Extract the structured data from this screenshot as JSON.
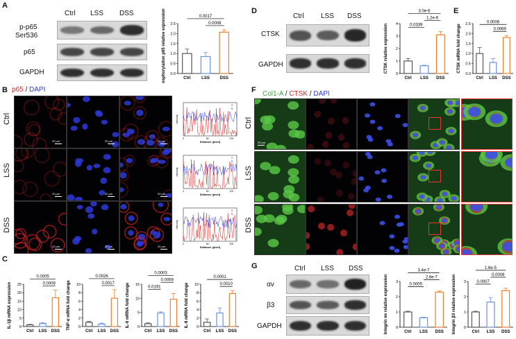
{
  "panels": {
    "A": "A",
    "B": "B",
    "C": "C",
    "D": "D",
    "E": "E",
    "F": "F",
    "G": "G"
  },
  "groups": [
    "Ctrl",
    "LSS",
    "DSS"
  ],
  "colors": {
    "ctrl": "#555555",
    "lss": "#6a8fe0",
    "dss": "#ee7f2d",
    "red": "#d42323",
    "blue": "#2d39d8",
    "green": "#3ea23e"
  },
  "panelA": {
    "row_labels": {
      "pp65_line1": "p-p65",
      "pp65_line2": "Ser536",
      "p65": "p65",
      "gapdh": "GAPDH"
    },
    "band_intensity": {
      "pp65": [
        0.35,
        0.45,
        0.85
      ],
      "p65": [
        0.7,
        0.7,
        0.7
      ],
      "gapdh": [
        0.85,
        0.85,
        0.85
      ]
    }
  },
  "panelB": {
    "legend_p65": "p65",
    "legend_sep": " / ",
    "legend_dapi": "DAPI",
    "row_labels": [
      "Ctrl",
      "LSS",
      "DSS"
    ],
    "scale": "20 μm",
    "plot_xlabel": "Distance (pixel)",
    "plot_ylabel": "Intensity",
    "plot_legend": [
      "R",
      "B"
    ],
    "plot_xticks": [
      "0",
      "50",
      "100"
    ]
  },
  "panelD": {
    "row_labels": {
      "ctsk": "CTSK",
      "gapdh": "GAPDH"
    },
    "band_intensity": {
      "ctsk": [
        0.6,
        0.55,
        0.9
      ],
      "gapdh": [
        0.85,
        0.85,
        0.85
      ]
    }
  },
  "panelF": {
    "legend_col1a": "Col1-A",
    "legend_sep1": " / ",
    "legend_ctsk": "CTSK",
    "legend_sep2": " / ",
    "legend_dapi": "DAPI",
    "row_labels": [
      "Ctrl",
      "LSS",
      "DSS"
    ],
    "scale": "20 μm"
  },
  "panelG": {
    "row_labels": {
      "av": "αv",
      "b3": "β3",
      "gapdh": "GAPDH"
    },
    "band_intensity": {
      "av": [
        0.45,
        0.4,
        0.95
      ],
      "b3": [
        0.6,
        0.55,
        0.85
      ],
      "gapdh": [
        0.85,
        0.85,
        0.85
      ]
    }
  },
  "chart_data": [
    {
      "id": "A",
      "type": "bar",
      "categories": [
        "Ctrl",
        "LSS",
        "DSS"
      ],
      "values": [
        1.0,
        0.85,
        2.07
      ],
      "errors": [
        0.22,
        0.2,
        0.12
      ],
      "ylabel": "Phosphorylation p65 relative expression",
      "ylim": [
        0,
        2.5
      ],
      "yticks": [
        "0.0",
        "0.5",
        "1.0",
        "1.5",
        "2.0",
        "2.5"
      ],
      "brackets": [
        {
          "from": 0,
          "to": 2,
          "label": "0.0017"
        },
        {
          "from": 1,
          "to": 2,
          "label": "0.0008"
        }
      ]
    },
    {
      "id": "C1",
      "type": "bar",
      "categories": [
        "Ctrl",
        "LSS",
        "DSS"
      ],
      "values": [
        1.0,
        1.8,
        17.0
      ],
      "errors": [
        0.3,
        0.4,
        4.5
      ],
      "ylabel": "IL-1β mRNA expression",
      "ylim": [
        0,
        25
      ],
      "yticks": [
        "0",
        "5",
        "10",
        "15",
        "20",
        "25"
      ],
      "brackets": [
        {
          "from": 0,
          "to": 2,
          "label": "0.0005"
        },
        {
          "from": 1,
          "to": 2,
          "label": "0.0008"
        }
      ]
    },
    {
      "id": "C2",
      "type": "bar",
      "categories": [
        "Ctrl",
        "LSS",
        "DSS"
      ],
      "values": [
        1.0,
        0.6,
        6.7
      ],
      "errors": [
        0.2,
        0.2,
        2.0
      ],
      "ylabel": "TNF-α mRNA fold change",
      "ylim": [
        0,
        10
      ],
      "yticks": [
        "0",
        "2",
        "4",
        "6",
        "8",
        "10"
      ],
      "brackets": [
        {
          "from": 0,
          "to": 2,
          "label": "0.0026"
        },
        {
          "from": 1,
          "to": 2,
          "label": "0.0017"
        }
      ]
    },
    {
      "id": "C3",
      "type": "bar",
      "categories": [
        "Ctrl",
        "LSS",
        "DSS"
      ],
      "values": [
        1.0,
        4.8,
        9.7
      ],
      "errors": [
        0.3,
        0.4,
        2.0
      ],
      "ylabel": "IL-6 mRNA fold change",
      "ylim": [
        0,
        15
      ],
      "yticks": [
        "0",
        "5",
        "10",
        "15"
      ],
      "brackets": [
        {
          "from": 0,
          "to": 1,
          "label": "0.0191"
        },
        {
          "from": 0,
          "to": 2,
          "label": "0.0003"
        },
        {
          "from": 1,
          "to": 2,
          "label": "0.0059"
        }
      ]
    },
    {
      "id": "C4",
      "type": "bar",
      "categories": [
        "Ctrl",
        "LSS",
        "DSS"
      ],
      "values": [
        1.0,
        3.2,
        7.8
      ],
      "errors": [
        0.8,
        1.2,
        0.7
      ],
      "ylabel": "IL-8 mRNA fold change",
      "ylim": [
        0,
        10
      ],
      "yticks": [
        "0",
        "2",
        "4",
        "6",
        "8",
        "10"
      ],
      "brackets": [
        {
          "from": 0,
          "to": 2,
          "label": "0.0001"
        },
        {
          "from": 1,
          "to": 2,
          "label": "0.0010"
        }
      ]
    },
    {
      "id": "D",
      "type": "bar",
      "categories": [
        "Ctrl",
        "LSS",
        "DSS"
      ],
      "values": [
        1.0,
        0.62,
        3.1
      ],
      "errors": [
        0.2,
        0.05,
        0.25
      ],
      "ylabel": "CTSK relative expression",
      "ylim": [
        0,
        4
      ],
      "yticks": [
        "0",
        "1",
        "2",
        "3",
        "4"
      ],
      "brackets": [
        {
          "from": 0,
          "to": 1,
          "label": "0.0339"
        },
        {
          "from": 1,
          "to": 2,
          "label": "1.2e-6"
        },
        {
          "from": 0,
          "to": 2,
          "label": "3.0e-6"
        }
      ]
    },
    {
      "id": "E",
      "type": "bar",
      "categories": [
        "Ctrl",
        "LSS",
        "DSS"
      ],
      "values": [
        1.0,
        0.55,
        1.8
      ],
      "errors": [
        0.3,
        0.2,
        0.1
      ],
      "ylabel": "CTSK mRNA fold change",
      "ylim": [
        0,
        2.5
      ],
      "yticks": [
        "0.0",
        "0.5",
        "1.0",
        "1.5",
        "2.0",
        "2.5"
      ],
      "brackets": [
        {
          "from": 0,
          "to": 2,
          "label": "0.0006"
        },
        {
          "from": 1,
          "to": 2,
          "label": "0.0069"
        }
      ]
    },
    {
      "id": "G1",
      "type": "bar",
      "categories": [
        "Ctrl",
        "LSS",
        "DSS"
      ],
      "values": [
        1.0,
        0.62,
        2.3
      ],
      "errors": [
        0.05,
        0.04,
        0.08
      ],
      "ylabel": "Integrin αv relative expression",
      "ylim": [
        0,
        3
      ],
      "yticks": [
        "0",
        "1",
        "2",
        "3"
      ],
      "brackets": [
        {
          "from": 0,
          "to": 1,
          "label": "0.0005"
        },
        {
          "from": 1,
          "to": 2,
          "label": "2.6e-7"
        },
        {
          "from": 0,
          "to": 2,
          "label": "3.4e-7"
        }
      ]
    },
    {
      "id": "G2",
      "type": "bar",
      "categories": [
        "Ctrl",
        "LSS",
        "DSS"
      ],
      "values": [
        1.0,
        1.65,
        2.4
      ],
      "errors": [
        0.05,
        0.3,
        0.15
      ],
      "ylabel": "Integrin β3 relative expression",
      "ylim": [
        0,
        3
      ],
      "yticks": [
        "0",
        "1",
        "2",
        "3"
      ],
      "brackets": [
        {
          "from": 0,
          "to": 1,
          "label": "0.0007"
        },
        {
          "from": 1,
          "to": 2,
          "label": "0.0008"
        },
        {
          "from": 0,
          "to": 2,
          "label": "1.6e-5"
        }
      ]
    }
  ]
}
